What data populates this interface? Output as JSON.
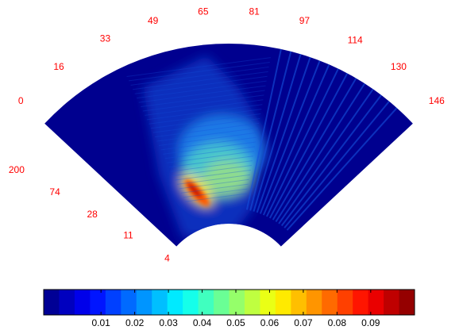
{
  "chart_data": {
    "type": "polar-heatmap",
    "anglelim": [
      0,
      146
    ],
    "angle_ticks": [
      0,
      16,
      33,
      49,
      65,
      81,
      97,
      114,
      130,
      146
    ],
    "rlim": [
      4,
      200
    ],
    "range_scale": "log",
    "range_ticks": [
      4,
      11,
      28,
      74,
      200
    ],
    "label_color": "#ff0000",
    "colormap": "jet",
    "colorbar": {
      "clim": [
        -0.007,
        0.103
      ],
      "levels": 24,
      "ticks": [
        0.01,
        0.02,
        0.03,
        0.04,
        0.05,
        0.06,
        0.07,
        0.08,
        0.09
      ]
    }
  }
}
